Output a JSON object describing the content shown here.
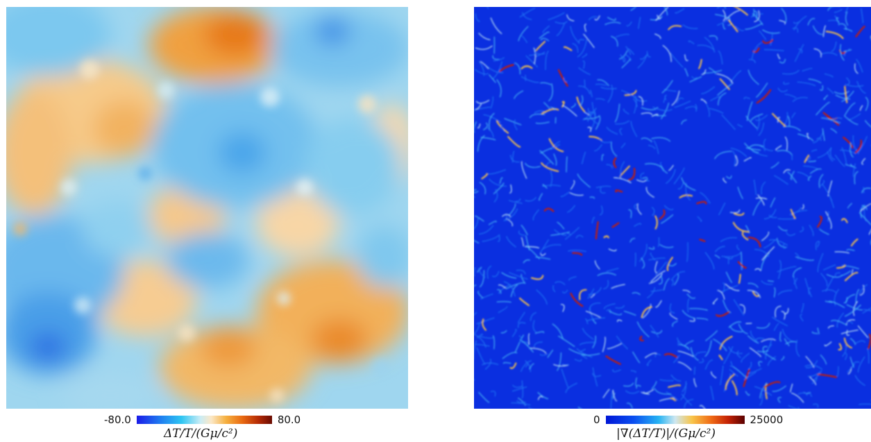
{
  "panels": {
    "left": {
      "colorbar": {
        "min_label": "-80.0",
        "max_label": "80.0",
        "axis_label": "ΔT/T/(Gμ/c²)"
      },
      "colormap": [
        "#1a1be8",
        "#1f7ff0",
        "#2ec5f2",
        "#c9ecf5",
        "#fbe8c8",
        "#f5b040",
        "#e96a12",
        "#b32a05",
        "#6a0b02"
      ]
    },
    "right": {
      "colorbar": {
        "min_label": "0",
        "max_label": "25000",
        "axis_label": "|∇(ΔT/T)|/(Gμ/c²)"
      },
      "colormap": [
        "#0016d6",
        "#0a4ef0",
        "#27b3f2",
        "#cfe7f0",
        "#f8c54a",
        "#ef6a15",
        "#c42205",
        "#5a0000"
      ]
    }
  }
}
